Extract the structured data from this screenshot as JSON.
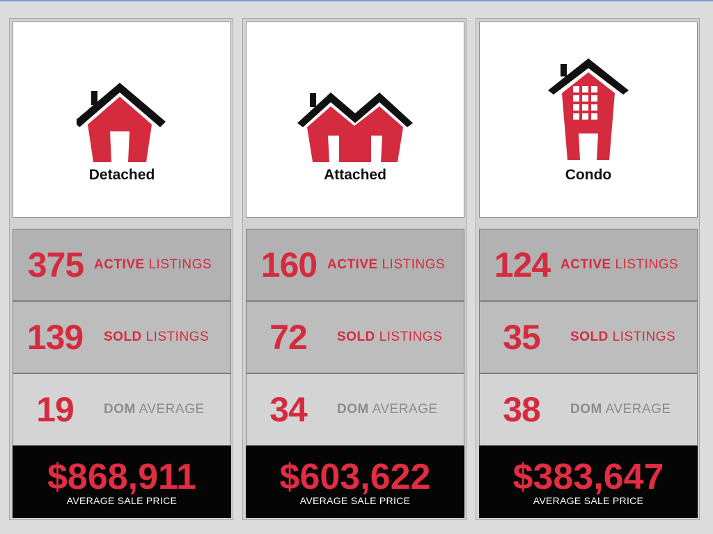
{
  "colors": {
    "accent": "#d52b3f",
    "price_bg": "#050505",
    "label_gray": "#8c8c8c"
  },
  "panels": [
    {
      "icon": "detached-house-icon",
      "type": "Detached",
      "active": {
        "value": "375",
        "label_bold": "ACTIVE",
        "label": "LISTINGS"
      },
      "sold": {
        "value": "139",
        "label_bold": "SOLD",
        "label": "LISTINGS"
      },
      "dom": {
        "value": "19",
        "label_bold": "DOM",
        "label": "AVERAGE"
      },
      "price": {
        "value": "$868,911",
        "label": "AVERAGE SALE PRICE"
      }
    },
    {
      "icon": "attached-house-icon",
      "type": "Attached",
      "active": {
        "value": "160",
        "label_bold": "ACTIVE",
        "label": "LISTINGS"
      },
      "sold": {
        "value": "72",
        "label_bold": "SOLD",
        "label": "LISTINGS"
      },
      "dom": {
        "value": "34",
        "label_bold": "DOM",
        "label": "AVERAGE"
      },
      "price": {
        "value": "$603,622",
        "label": "AVERAGE SALE PRICE"
      }
    },
    {
      "icon": "condo-building-icon",
      "type": "Condo",
      "active": {
        "value": "124",
        "label_bold": "ACTIVE",
        "label": "LISTINGS"
      },
      "sold": {
        "value": "35",
        "label_bold": "SOLD",
        "label": "LISTINGS"
      },
      "dom": {
        "value": "38",
        "label_bold": "DOM",
        "label": "AVERAGE"
      },
      "price": {
        "value": "$383,647",
        "label": "AVERAGE SALE PRICE"
      }
    }
  ]
}
